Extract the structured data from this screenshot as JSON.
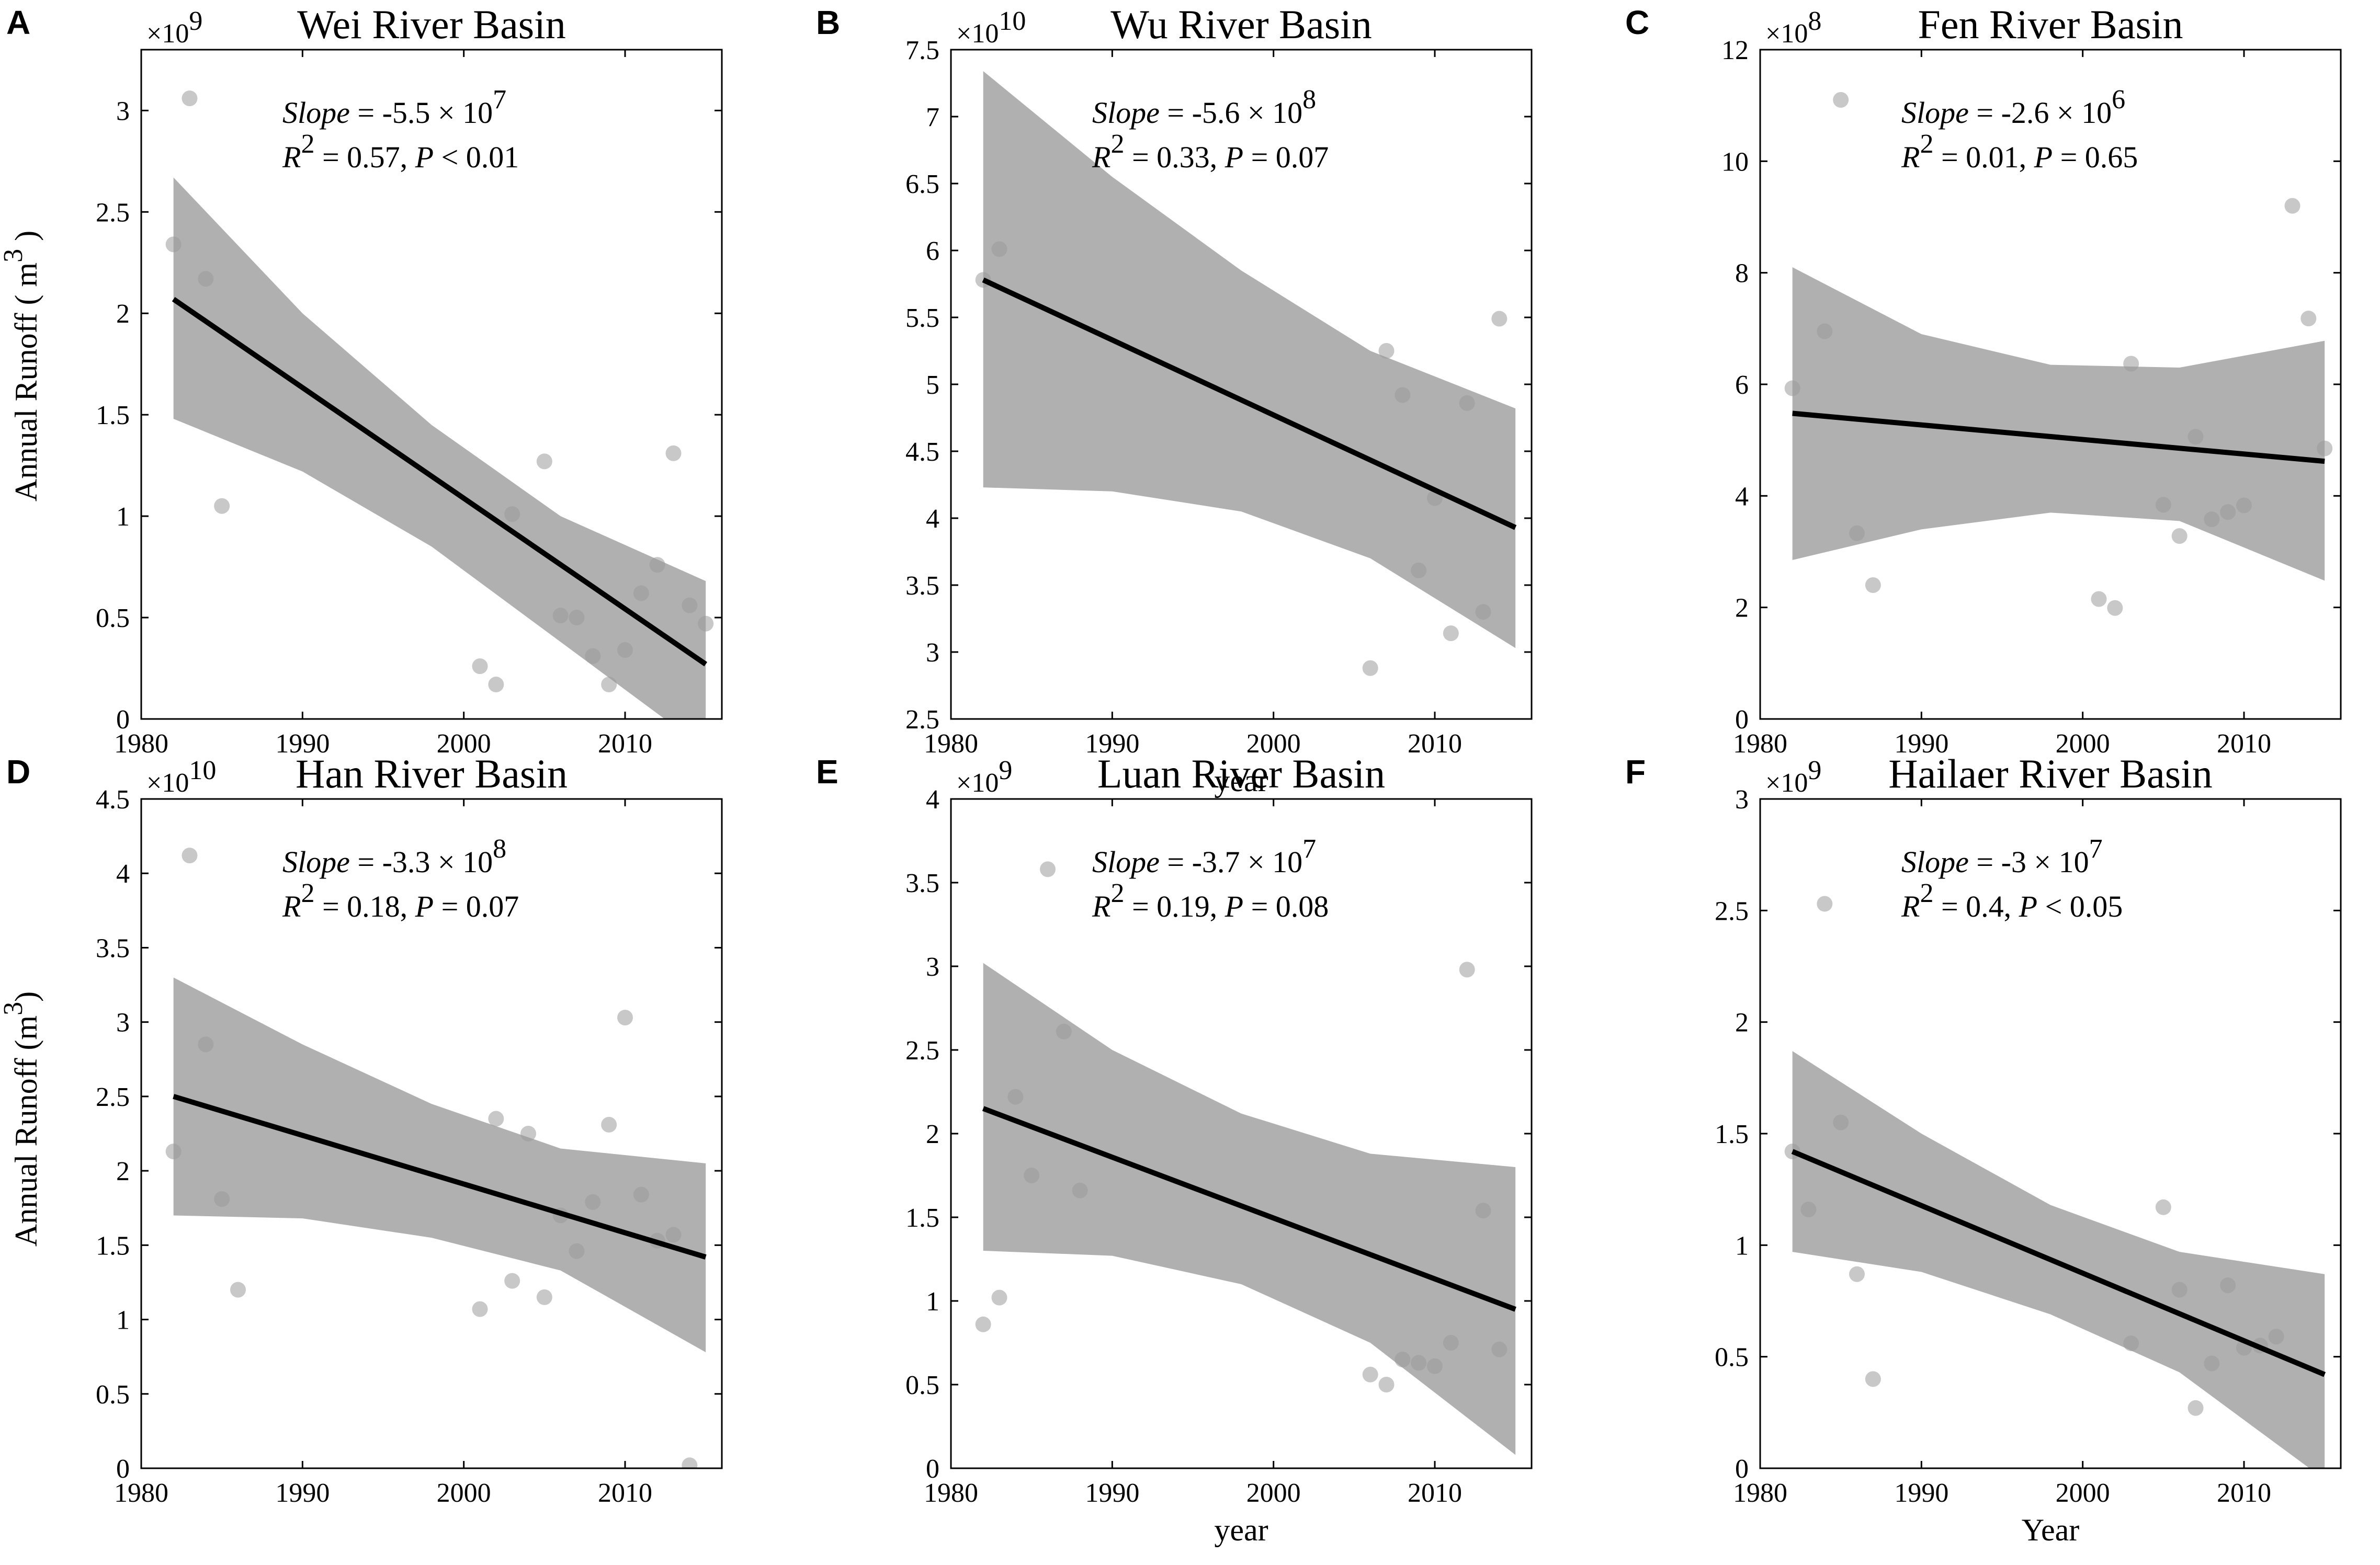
{
  "figure": {
    "ylabel": "Annual Runoff ( m",
    "ylabel_sup": "3",
    "ylabel_close": " )",
    "ylabel_d": "Annual Runoff (m",
    "ylabel_d_close": ")"
  },
  "colors": {
    "band": "#b0b0b0",
    "line": "#000000",
    "point": "#9a9a9a",
    "axes": "#000000"
  },
  "chart_data": [
    {
      "type": "scatter",
      "panel": "A",
      "title": "Wei River Basin",
      "xlabel": "",
      "xlim": [
        1980,
        2016
      ],
      "xticks": [
        1980,
        1990,
        2000,
        2010
      ],
      "ylim": [
        0,
        3.3
      ],
      "yticks": [
        "0",
        "0.5",
        "1",
        "1.5",
        "2",
        "2.5",
        "3"
      ],
      "yscale_base": "10",
      "yscale_exp": "9",
      "annotation": {
        "slope_label": "Slope",
        "slope_value": " = -5.5 × 10",
        "slope_exp": "7",
        "r2_label": "R",
        "r2_value": " = 0.57, ",
        "p_label": "P",
        "p_value": " < 0.01"
      },
      "fit": {
        "x": [
          1982,
          2015
        ],
        "y": [
          2.07,
          0.27
        ]
      },
      "band": {
        "x": [
          1982,
          1990,
          1998,
          2006,
          2015
        ],
        "upper": [
          2.67,
          2.0,
          1.45,
          1.0,
          0.68
        ],
        "lower": [
          1.48,
          1.22,
          0.85,
          0.38,
          -0.15
        ]
      },
      "points": [
        [
          1982,
          2.34
        ],
        [
          1983,
          3.06
        ],
        [
          1984,
          2.17
        ],
        [
          1985,
          1.05
        ],
        [
          2001,
          0.26
        ],
        [
          2002,
          0.17
        ],
        [
          2003,
          1.01
        ],
        [
          2005,
          1.27
        ],
        [
          2006,
          0.51
        ],
        [
          2007,
          0.5
        ],
        [
          2008,
          0.31
        ],
        [
          2009,
          0.17
        ],
        [
          2010,
          0.34
        ],
        [
          2011,
          0.62
        ],
        [
          2012,
          0.76
        ],
        [
          2013,
          1.31
        ],
        [
          2014,
          0.56
        ],
        [
          2015,
          0.47
        ]
      ]
    },
    {
      "type": "scatter",
      "panel": "B",
      "title": "Wu River Basin",
      "xlabel": "year",
      "xlim": [
        1980,
        2016
      ],
      "xticks": [
        1980,
        1990,
        2000,
        2010
      ],
      "ylim": [
        2.5,
        7.5
      ],
      "yticks": [
        "2.5",
        "3",
        "3.5",
        "4",
        "4.5",
        "5",
        "5.5",
        "6",
        "6.5",
        "7",
        "7.5"
      ],
      "yscale_base": "10",
      "yscale_exp": "10",
      "annotation": {
        "slope_label": "Slope",
        "slope_value": " = -5.6 × 10",
        "slope_exp": "8",
        "r2_label": "R",
        "r2_value": " = 0.33, ",
        "p_label": "P",
        "p_value": " = 0.07"
      },
      "fit": {
        "x": [
          1982,
          2015
        ],
        "y": [
          5.78,
          3.93
        ]
      },
      "band": {
        "x": [
          1982,
          1990,
          1998,
          2006,
          2015
        ],
        "upper": [
          7.34,
          6.55,
          5.85,
          5.25,
          4.82
        ],
        "lower": [
          4.23,
          4.2,
          4.05,
          3.7,
          3.03
        ]
      },
      "points": [
        [
          1982,
          5.78
        ],
        [
          1983,
          6.01
        ],
        [
          2006,
          2.88
        ],
        [
          2007,
          5.25
        ],
        [
          2008,
          4.92
        ],
        [
          2009,
          3.61
        ],
        [
          2010,
          4.15
        ],
        [
          2011,
          3.14
        ],
        [
          2012,
          4.86
        ],
        [
          2013,
          3.3
        ],
        [
          2014,
          5.49
        ]
      ]
    },
    {
      "type": "scatter",
      "panel": "C",
      "title": "Fen River Basin",
      "xlabel": "",
      "xlim": [
        1980,
        2016
      ],
      "xticks": [
        1980,
        1990,
        2000,
        2010
      ],
      "ylim": [
        0,
        12
      ],
      "yticks": [
        "0",
        "2",
        "4",
        "6",
        "8",
        "10",
        "12"
      ],
      "yscale_base": "10",
      "yscale_exp": "8",
      "annotation": {
        "slope_label": "Slope",
        "slope_value": " = -2.6 × 10",
        "slope_exp": "6",
        "r2_label": "R",
        "r2_value": " = 0.01, ",
        "p_label": "P",
        "p_value": " = 0.65"
      },
      "fit": {
        "x": [
          1982,
          2015
        ],
        "y": [
          5.48,
          4.62
        ]
      },
      "band": {
        "x": [
          1982,
          1990,
          1998,
          2006,
          2015
        ],
        "upper": [
          8.1,
          6.9,
          6.35,
          6.3,
          6.78
        ],
        "lower": [
          2.85,
          3.4,
          3.7,
          3.55,
          2.48
        ]
      },
      "points": [
        [
          1982,
          5.93
        ],
        [
          1984,
          6.95
        ],
        [
          1985,
          11.1
        ],
        [
          1986,
          3.33
        ],
        [
          1987,
          2.4
        ],
        [
          2001,
          2.15
        ],
        [
          2002,
          1.99
        ],
        [
          2003,
          6.37
        ],
        [
          2005,
          3.84
        ],
        [
          2006,
          3.28
        ],
        [
          2007,
          5.06
        ],
        [
          2008,
          3.58
        ],
        [
          2009,
          3.71
        ],
        [
          2010,
          3.83
        ],
        [
          2013,
          9.2
        ],
        [
          2014,
          7.18
        ],
        [
          2015,
          4.85
        ]
      ]
    },
    {
      "type": "scatter",
      "panel": "D",
      "title": "Han River Basin",
      "xlabel": "",
      "xlim": [
        1980,
        2016
      ],
      "xticks": [
        1980,
        1990,
        2000,
        2010
      ],
      "ylim": [
        0,
        4.5
      ],
      "yticks": [
        "0",
        "0.5",
        "1",
        "1.5",
        "2",
        "2.5",
        "3",
        "3.5",
        "4",
        "4.5"
      ],
      "yscale_base": "10",
      "yscale_exp": "10",
      "annotation": {
        "slope_label": "Slope",
        "slope_value": " = -3.3 × 10",
        "slope_exp": "8",
        "r2_label": "R",
        "r2_value": " = 0.18, ",
        "p_label": "P",
        "p_value": " = 0.07"
      },
      "fit": {
        "x": [
          1982,
          2015
        ],
        "y": [
          2.5,
          1.42
        ]
      },
      "band": {
        "x": [
          1982,
          1990,
          1998,
          2006,
          2015
        ],
        "upper": [
          3.3,
          2.85,
          2.45,
          2.15,
          2.05
        ],
        "lower": [
          1.7,
          1.68,
          1.55,
          1.33,
          0.78
        ]
      },
      "points": [
        [
          1982,
          2.13
        ],
        [
          1983,
          4.12
        ],
        [
          1984,
          2.85
        ],
        [
          1985,
          1.81
        ],
        [
          1986,
          1.2
        ],
        [
          2001,
          1.07
        ],
        [
          2002,
          2.35
        ],
        [
          2003,
          1.26
        ],
        [
          2004,
          2.25
        ],
        [
          2005,
          1.15
        ],
        [
          2006,
          1.7
        ],
        [
          2007,
          1.46
        ],
        [
          2008,
          1.79
        ],
        [
          2009,
          2.31
        ],
        [
          2010,
          3.03
        ],
        [
          2011,
          1.84
        ],
        [
          2012,
          1.53
        ],
        [
          2013,
          1.57
        ],
        [
          2014,
          0.02
        ]
      ]
    },
    {
      "type": "scatter",
      "panel": "E",
      "title": "Luan River Basin",
      "xlabel": "year",
      "xlim": [
        1980,
        2016
      ],
      "xticks": [
        1980,
        1990,
        2000,
        2010
      ],
      "ylim": [
        0,
        4
      ],
      "yticks": [
        "0",
        "0.5",
        "1",
        "1.5",
        "2",
        "2.5",
        "3",
        "3.5",
        "4"
      ],
      "yscale_base": "10",
      "yscale_exp": "9",
      "annotation": {
        "slope_label": "Slope",
        "slope_value": " = -3.7 × 10",
        "slope_exp": "7",
        "r2_label": "R",
        "r2_value": " = 0.19, ",
        "p_label": "P",
        "p_value": " = 0.08"
      },
      "fit": {
        "x": [
          1982,
          2015
        ],
        "y": [
          2.15,
          0.95
        ]
      },
      "band": {
        "x": [
          1982,
          1990,
          1998,
          2006,
          2015
        ],
        "upper": [
          3.02,
          2.5,
          2.12,
          1.88,
          1.8
        ],
        "lower": [
          1.3,
          1.27,
          1.1,
          0.75,
          0.08
        ]
      },
      "points": [
        [
          1982,
          0.86
        ],
        [
          1983,
          1.02
        ],
        [
          1984,
          2.22
        ],
        [
          1985,
          1.75
        ],
        [
          1986,
          3.58
        ],
        [
          1987,
          2.61
        ],
        [
          1988,
          1.66
        ],
        [
          2006,
          0.56
        ],
        [
          2007,
          0.5
        ],
        [
          2008,
          0.65
        ],
        [
          2009,
          0.63
        ],
        [
          2010,
          0.61
        ],
        [
          2011,
          0.75
        ],
        [
          2012,
          2.98
        ],
        [
          2013,
          1.54
        ],
        [
          2014,
          0.71
        ]
      ]
    },
    {
      "type": "scatter",
      "panel": "F",
      "title": "Hailaer River Basin",
      "xlabel": "Year",
      "xlim": [
        1980,
        2016
      ],
      "xticks": [
        1980,
        1990,
        2000,
        2010
      ],
      "ylim": [
        0,
        3
      ],
      "yticks": [
        "0",
        "0.5",
        "1",
        "1.5",
        "2",
        "2.5",
        "3"
      ],
      "yscale_base": "10",
      "yscale_exp": "9",
      "annotation": {
        "slope_label": "Slope",
        "slope_value": " = -3 × 10",
        "slope_exp": "7",
        "r2_label": "R",
        "r2_value": " = 0.4, ",
        "p_label": "P",
        "p_value": " < 0.05"
      },
      "fit": {
        "x": [
          1982,
          2015
        ],
        "y": [
          1.42,
          0.42
        ]
      },
      "band": {
        "x": [
          1982,
          1990,
          1998,
          2006,
          2015
        ],
        "upper": [
          1.87,
          1.5,
          1.18,
          0.97,
          0.87
        ],
        "lower": [
          0.97,
          0.88,
          0.69,
          0.43,
          -0.05
        ]
      },
      "points": [
        [
          1982,
          1.42
        ],
        [
          1983,
          1.16
        ],
        [
          1984,
          2.53
        ],
        [
          1985,
          1.55
        ],
        [
          1986,
          0.87
        ],
        [
          1987,
          0.4
        ],
        [
          2003,
          0.56
        ],
        [
          2005,
          1.17
        ],
        [
          2006,
          0.8
        ],
        [
          2007,
          0.27
        ],
        [
          2008,
          0.47
        ],
        [
          2009,
          0.82
        ],
        [
          2010,
          0.54
        ],
        [
          2011,
          0.55
        ],
        [
          2012,
          0.59
        ]
      ]
    }
  ]
}
